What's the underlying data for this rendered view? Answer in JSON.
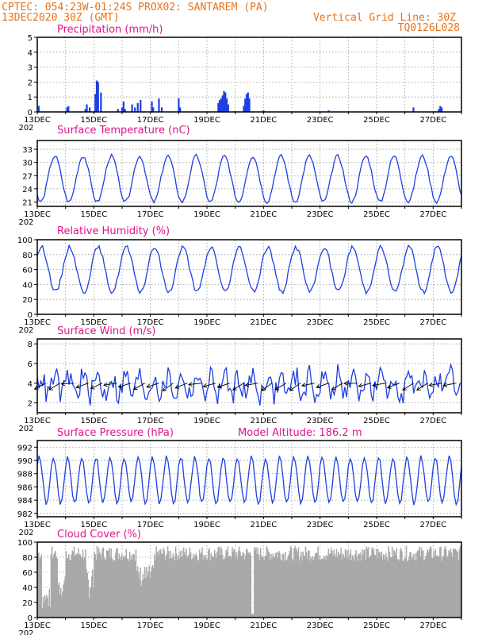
{
  "header": {
    "line1_left": "CPTEC:  054:23W-01:24S   PROX02: SANTAREM (PA)",
    "line2_left": "13DEC2020 30Z (GMT)",
    "line2_right": "Vertical Grid Line: 30Z",
    "line3_right": "TQ0126L028"
  },
  "colors": {
    "header": "#e8731a",
    "title": "#e0148c",
    "line": "#1f3fe0",
    "cloud": "#a9a9a9",
    "grid": "#999999"
  },
  "x_axis": {
    "labels": [
      "13DEC",
      "15DEC",
      "17DEC",
      "19DEC",
      "21DEC",
      "23DEC",
      "25DEC",
      "27DEC"
    ],
    "sub_label": "202"
  },
  "chart_data": [
    {
      "id": "precip",
      "type": "bar",
      "title": "Precipitation (mm/h)",
      "ylim": [
        0,
        5
      ],
      "yticks": [
        0,
        1,
        2,
        3,
        4,
        5
      ],
      "x": [
        0.05,
        1.05,
        1.1,
        1.7,
        1.75,
        1.85,
        2.05,
        2.1,
        2.15,
        2.25,
        2.85,
        3.0,
        3.05,
        3.1,
        3.35,
        3.45,
        3.55,
        3.65,
        4.05,
        4.1,
        4.3,
        4.4,
        5.0,
        5.05,
        6.4,
        6.45,
        6.5,
        6.55,
        6.6,
        6.65,
        6.7,
        6.75,
        7.3,
        7.35,
        7.4,
        7.45,
        7.5,
        8.0,
        10.3,
        13.3,
        14.2,
        14.25,
        14.3
      ],
      "values": [
        0.4,
        0.3,
        0.4,
        0.2,
        0.5,
        0.3,
        1.2,
        2.1,
        2.0,
        1.3,
        0.2,
        0.3,
        0.7,
        0.2,
        0.5,
        0.3,
        0.6,
        0.8,
        0.7,
        0.3,
        0.9,
        0.3,
        0.9,
        0.3,
        0.6,
        0.8,
        0.9,
        1.1,
        1.4,
        1.3,
        0.9,
        0.5,
        0.4,
        0.9,
        1.2,
        1.3,
        0.9,
        0.1,
        0.1,
        0.3,
        0.2,
        0.4,
        0.3
      ],
      "grid": true
    },
    {
      "id": "temp",
      "type": "line",
      "title": "Surface Temperature (nC)",
      "ylim": [
        20,
        35
      ],
      "yticks": [
        21,
        24,
        27,
        30,
        33
      ],
      "base": 22.5,
      "amp": 11,
      "peak_phase": 0.62,
      "grid": true
    },
    {
      "id": "rh",
      "type": "line",
      "title": "Relative Humidity (%)",
      "ylim": [
        0,
        100
      ],
      "yticks": [
        0,
        20,
        40,
        60,
        80,
        100
      ],
      "base": 88,
      "amp": 55,
      "peak_phase": 0.15,
      "grid": true
    },
    {
      "id": "wind",
      "type": "line",
      "title": "Surface Wind (m/s)",
      "ylim": [
        1,
        8.5
      ],
      "yticks": [
        2,
        4,
        6,
        8
      ],
      "base": 3.8,
      "amp": 1.6,
      "arrows": true,
      "grid": true
    },
    {
      "id": "pres",
      "type": "line",
      "title": "Surface Pressure (hPa)",
      "extra_label": "Model Altitude: 186.2 m",
      "ylim": [
        981.5,
        993
      ],
      "yticks": [
        982,
        984,
        986,
        988,
        990,
        992
      ],
      "base": 987,
      "amp": 3.5,
      "grid": true
    },
    {
      "id": "cloud",
      "type": "bar",
      "title": "Cloud Cover (%)",
      "ylim": [
        0,
        100
      ],
      "yticks": [
        0,
        20,
        40,
        60,
        80,
        100
      ],
      "base": 85,
      "grid": true
    }
  ]
}
